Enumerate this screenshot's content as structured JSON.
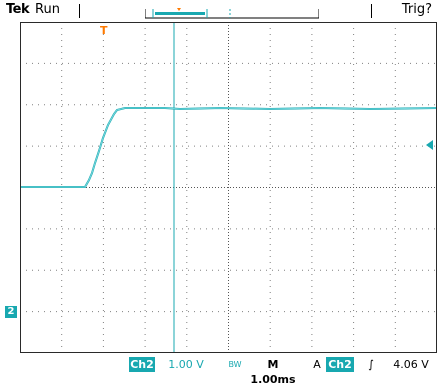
{
  "header": {
    "brand": "Tek",
    "status": "Run",
    "trigger": "Trig?"
  },
  "channel": {
    "name": "Ch2",
    "scale": "1.00 V",
    "marker": "2",
    "color": "#18a8b0"
  },
  "timebase": {
    "prefix": "M",
    "value": "1.00ms"
  },
  "trigger": {
    "mode": "A",
    "source": "Ch2",
    "edge_symbol": "∫",
    "level": "4.06 V",
    "marker": "T",
    "marker_color": "#ff7a00"
  },
  "bandwidth_icon": "bandwidth-limit-icon"
}
